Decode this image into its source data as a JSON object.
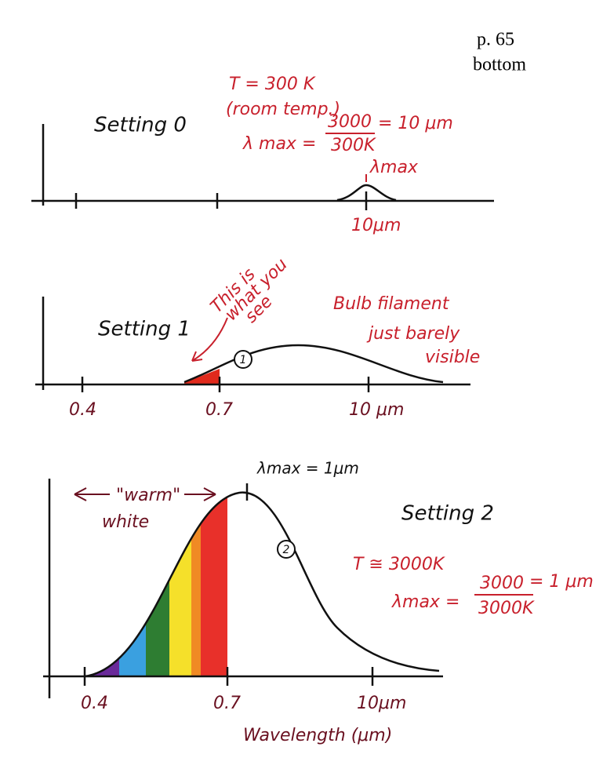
{
  "header": {
    "page": "p. 65",
    "section": "bottom"
  },
  "panels": [
    {
      "label": "Setting 0",
      "annotations": [
        "T = 300 K",
        "(room temp.)",
        "λ max =",
        "3000",
        "300K",
        "= 10 μm",
        "λmax"
      ],
      "tick_labels": [
        "10μm"
      ]
    },
    {
      "label": "Setting 1",
      "annotations": [
        "This is",
        "what you",
        "see",
        "1",
        "Bulb filament",
        "just barely",
        "visible"
      ],
      "tick_labels": [
        "0.4",
        "0.7",
        "10 μm"
      ]
    },
    {
      "label": "Setting 2",
      "annotations": [
        "λmax = 1μm",
        "\"warm\"",
        "white",
        "2",
        "T ≅ 3000K",
        "λmax =",
        "3000",
        "3000K",
        "= 1 μm"
      ],
      "tick_labels": [
        "0.4",
        "0.7",
        "10μm"
      ],
      "axis_title": "Wavelength (μm)"
    }
  ]
}
